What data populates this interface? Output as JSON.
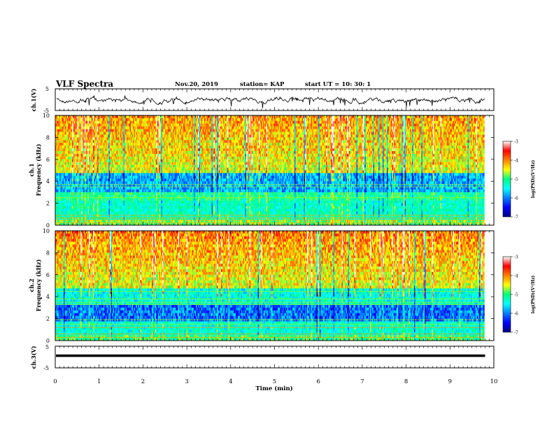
{
  "header": {
    "title": "VLF Spectra",
    "date": "Nov.20, 2019",
    "station": "station= KAP",
    "start": "start  UT =   10: 30: 1"
  },
  "chart_data": [
    {
      "type": "line",
      "panel": "ch1-waveform",
      "ylabel": "ch.1(V)",
      "ylim": [
        -5,
        5
      ],
      "yticks": [
        "5",
        "-5"
      ],
      "xlim": [
        0,
        10
      ],
      "trace_end_min": 9.8,
      "series": [
        {
          "values": []
        }
      ],
      "style": {
        "line_color": "#000000"
      }
    },
    {
      "type": "heatmap",
      "panel": "ch1-spectrogram",
      "ylabel": "ch.1",
      "ylabel2": "Frequency (kHz)",
      "ylim": [
        0,
        10
      ],
      "yticks": [
        "0",
        "2",
        "4",
        "6",
        "8",
        "10"
      ],
      "xlim": [
        0,
        10
      ],
      "data_end_min": 9.8,
      "colorbar": {
        "label": "log(PSD)(V²/Hz)",
        "range": [
          -7,
          -3
        ],
        "ticks": [
          "-3",
          "-4",
          "-5",
          "-6",
          "-7"
        ]
      }
    },
    {
      "type": "heatmap",
      "panel": "ch2-spectrogram",
      "ylabel": "ch.2",
      "ylabel2": "Frequency (kHz)",
      "ylim": [
        0,
        10
      ],
      "yticks": [
        "0",
        "2",
        "4",
        "6",
        "8",
        "10"
      ],
      "xlim": [
        0,
        10
      ],
      "data_end_min": 9.8,
      "colorbar": {
        "label": "log(PSD)(V²/Hz)",
        "range": [
          -7,
          -3
        ],
        "ticks": [
          "-3",
          "-4",
          "-5",
          "-6",
          "-7"
        ]
      }
    },
    {
      "type": "line",
      "panel": "ch3-waveform",
      "ylabel": "ch.3(V)",
      "ylim": [
        -5,
        5
      ],
      "yticks": [
        "5",
        "-5"
      ],
      "xlim": [
        0,
        10
      ],
      "trace_end_min": 9.8,
      "series": [
        {
          "values": []
        }
      ],
      "xlabel": "Time (min)",
      "xticks": [
        "0",
        "1",
        "2",
        "3",
        "4",
        "5",
        "6",
        "7",
        "8",
        "9",
        "10"
      ]
    }
  ]
}
